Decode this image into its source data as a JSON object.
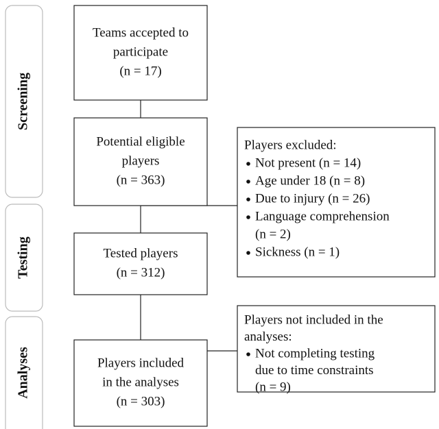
{
  "sections": [
    "Screening",
    "Testing",
    "Analyses"
  ],
  "boxes": [
    {
      "lines": [
        "Teams accepted to",
        "participate",
        "(n = 17)"
      ]
    },
    {
      "lines": [
        "Potential eligible",
        "players",
        "(n = 363)"
      ]
    },
    {
      "lines": [
        "Tested players",
        "(n = 312)"
      ]
    },
    {
      "lines": [
        "Players included",
        "in the analyses",
        "(n = 303)"
      ]
    }
  ],
  "exclusions": [
    {
      "title": [
        "Players excluded:"
      ],
      "items": [
        [
          "Not present (n = 14)"
        ],
        [
          "Age under 18 (n = 8)"
        ],
        [
          "Due to injury (n = 26)"
        ],
        [
          "Language comprehension",
          "(n = 2)"
        ],
        [
          "Sickness (n = 1)"
        ]
      ]
    },
    {
      "title": [
        "Players not included in the",
        "analyses:"
      ],
      "items": [
        [
          "Not completing testing",
          "due to time constraints",
          "(n = 9)"
        ]
      ]
    }
  ]
}
